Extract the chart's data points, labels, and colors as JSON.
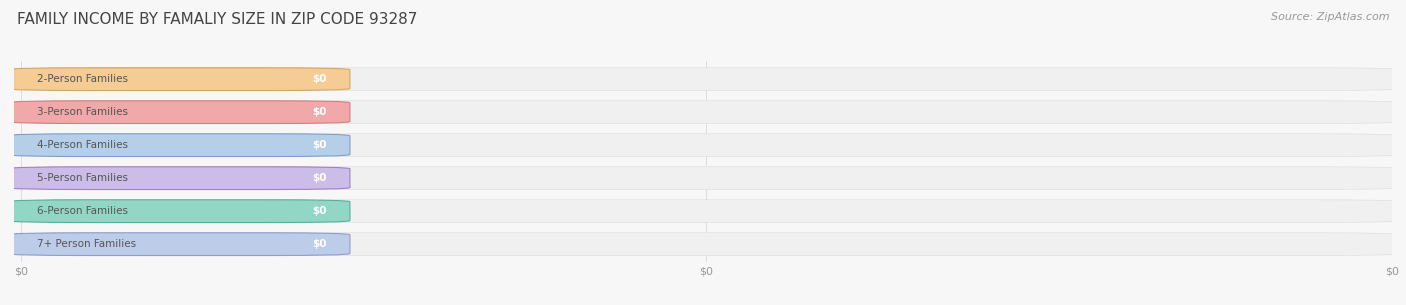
{
  "title": "FAMILY INCOME BY FAMALIY SIZE IN ZIP CODE 93287",
  "source": "Source: ZipAtlas.com",
  "categories": [
    "2-Person Families",
    "3-Person Families",
    "4-Person Families",
    "5-Person Families",
    "6-Person Families",
    "7+ Person Families"
  ],
  "values": [
    0,
    0,
    0,
    0,
    0,
    0
  ],
  "bar_colors": [
    "#f5c98a",
    "#f0a0a0",
    "#b0cce8",
    "#c8b8e8",
    "#88d5c2",
    "#b8c8e8"
  ],
  "bar_edge_colors": [
    "#d4a060",
    "#d07878",
    "#7898c8",
    "#9878c8",
    "#50a898",
    "#8898c8"
  ],
  "value_label": "$0",
  "background_color": "#f7f7f7",
  "bar_bg_color": "#efefef",
  "title_fontsize": 11,
  "label_fontsize": 7.5,
  "source_fontsize": 8,
  "tick_fontsize": 8
}
